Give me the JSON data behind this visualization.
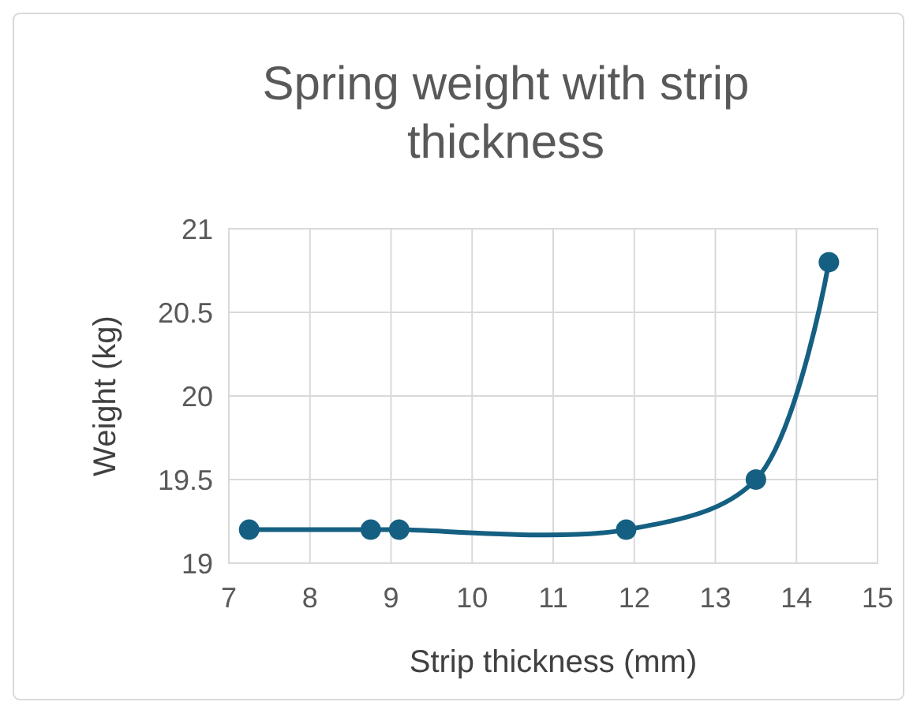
{
  "chart_data": {
    "type": "line",
    "title": "Spring weight with strip thickness",
    "xlabel": "Strip thickness (mm)",
    "ylabel": "Weight (kg)",
    "x": [
      7.25,
      8.75,
      9.1,
      11.9,
      13.5,
      14.4
    ],
    "series": [
      {
        "color": "#156082",
        "values": [
          19.2,
          19.2,
          19.2,
          19.2,
          19.5,
          20.8
        ]
      }
    ],
    "xlim": [
      7,
      15
    ],
    "xticks": [
      7,
      8,
      9,
      10,
      11,
      12,
      13,
      14,
      15
    ],
    "ylim": [
      19,
      21
    ],
    "yticks": [
      19,
      19.5,
      20,
      20.5,
      21
    ],
    "grid": true,
    "marker": "circle",
    "line_style": "solid"
  }
}
